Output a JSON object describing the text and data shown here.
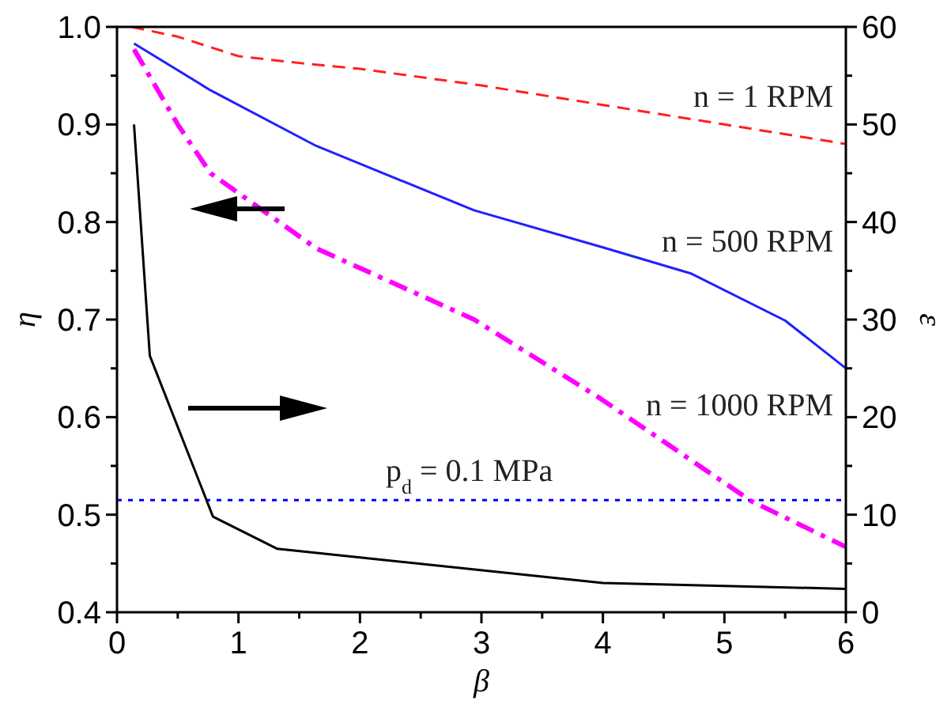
{
  "chart_data": {
    "type": "line",
    "xlabel": "β",
    "ylabel": "η",
    "y2label": "ε",
    "xlim": [
      0,
      6
    ],
    "xticks": [
      0,
      {
        "value": 0.5,
        "label": null
      },
      1,
      {
        "value": 1.5,
        "label": null
      },
      2,
      {
        "value": 2.5,
        "label": null
      },
      3,
      {
        "value": 3.5,
        "label": null
      },
      4,
      {
        "value": 4.5,
        "label": null
      },
      5,
      {
        "value": 5.5,
        "label": null
      },
      6
    ],
    "ylim": [
      0.4,
      1.0
    ],
    "yticks": [
      0.4,
      {
        "value": 0.45,
        "label": null
      },
      0.5,
      {
        "value": 0.55,
        "label": null
      },
      0.6,
      {
        "value": 0.65,
        "label": null
      },
      0.7,
      {
        "value": 0.75,
        "label": null
      },
      0.8,
      {
        "value": 0.85,
        "label": null
      },
      0.9,
      {
        "value": 0.95,
        "label": null
      },
      {
        "value": 1.0,
        "label": "1.0"
      }
    ],
    "y2lim": [
      0,
      60
    ],
    "y2ticks": [
      0,
      {
        "value": 5,
        "label": null
      },
      10,
      {
        "value": 15,
        "label": null
      },
      20,
      {
        "value": 25,
        "label": null
      },
      30,
      {
        "value": 35,
        "label": null
      },
      40,
      {
        "value": 45,
        "label": null
      },
      50,
      {
        "value": 55,
        "label": null
      },
      60
    ],
    "grid": false,
    "series": [
      {
        "name": "n = 1 RPM",
        "color": "#ff2020",
        "line_style": "dashed",
        "x": [
          0.12,
          0.5,
          1,
          1.5,
          2,
          3,
          4,
          5,
          6
        ],
        "values": [
          1.0,
          0.99,
          0.97,
          0.963,
          0.957,
          0.94,
          0.92,
          0.9,
          0.88
        ]
      },
      {
        "name": "n = 500 RPM",
        "color": "#2020ff",
        "line_style": "solid",
        "x": [
          0.14,
          0.77,
          1.64,
          2.94,
          4,
          4.73,
          5.5,
          6
        ],
        "values": [
          0.983,
          0.935,
          0.878,
          0.812,
          0.774,
          0.747,
          0.699,
          0.65
        ]
      },
      {
        "name": "n = 1000 RPM",
        "color": "#ff00ff",
        "line_style": "dashdot",
        "x": [
          0.14,
          0.5,
          0.77,
          1.64,
          2.94,
          3.98,
          5.22,
          6
        ],
        "values": [
          0.977,
          0.9,
          0.85,
          0.773,
          0.7,
          0.619,
          0.514,
          0.467
        ]
      },
      {
        "color": "#000000",
        "line_style": "solid",
        "axis": "y2",
        "x": [
          0.14,
          0.27,
          0.79,
          1.32,
          4.0,
          6.0
        ],
        "values": [
          50,
          26.3,
          9.8,
          6.5,
          3.0,
          2.4
        ]
      }
    ],
    "ref_lines": [
      {
        "axis": "y",
        "value": 0.515,
        "color": "#0000ff",
        "line_style": "dotted"
      }
    ],
    "annotations": [
      {
        "text": "p$_{d}$ = 0.1 MPa",
        "x": 2.9,
        "y": 0.515
      }
    ]
  }
}
